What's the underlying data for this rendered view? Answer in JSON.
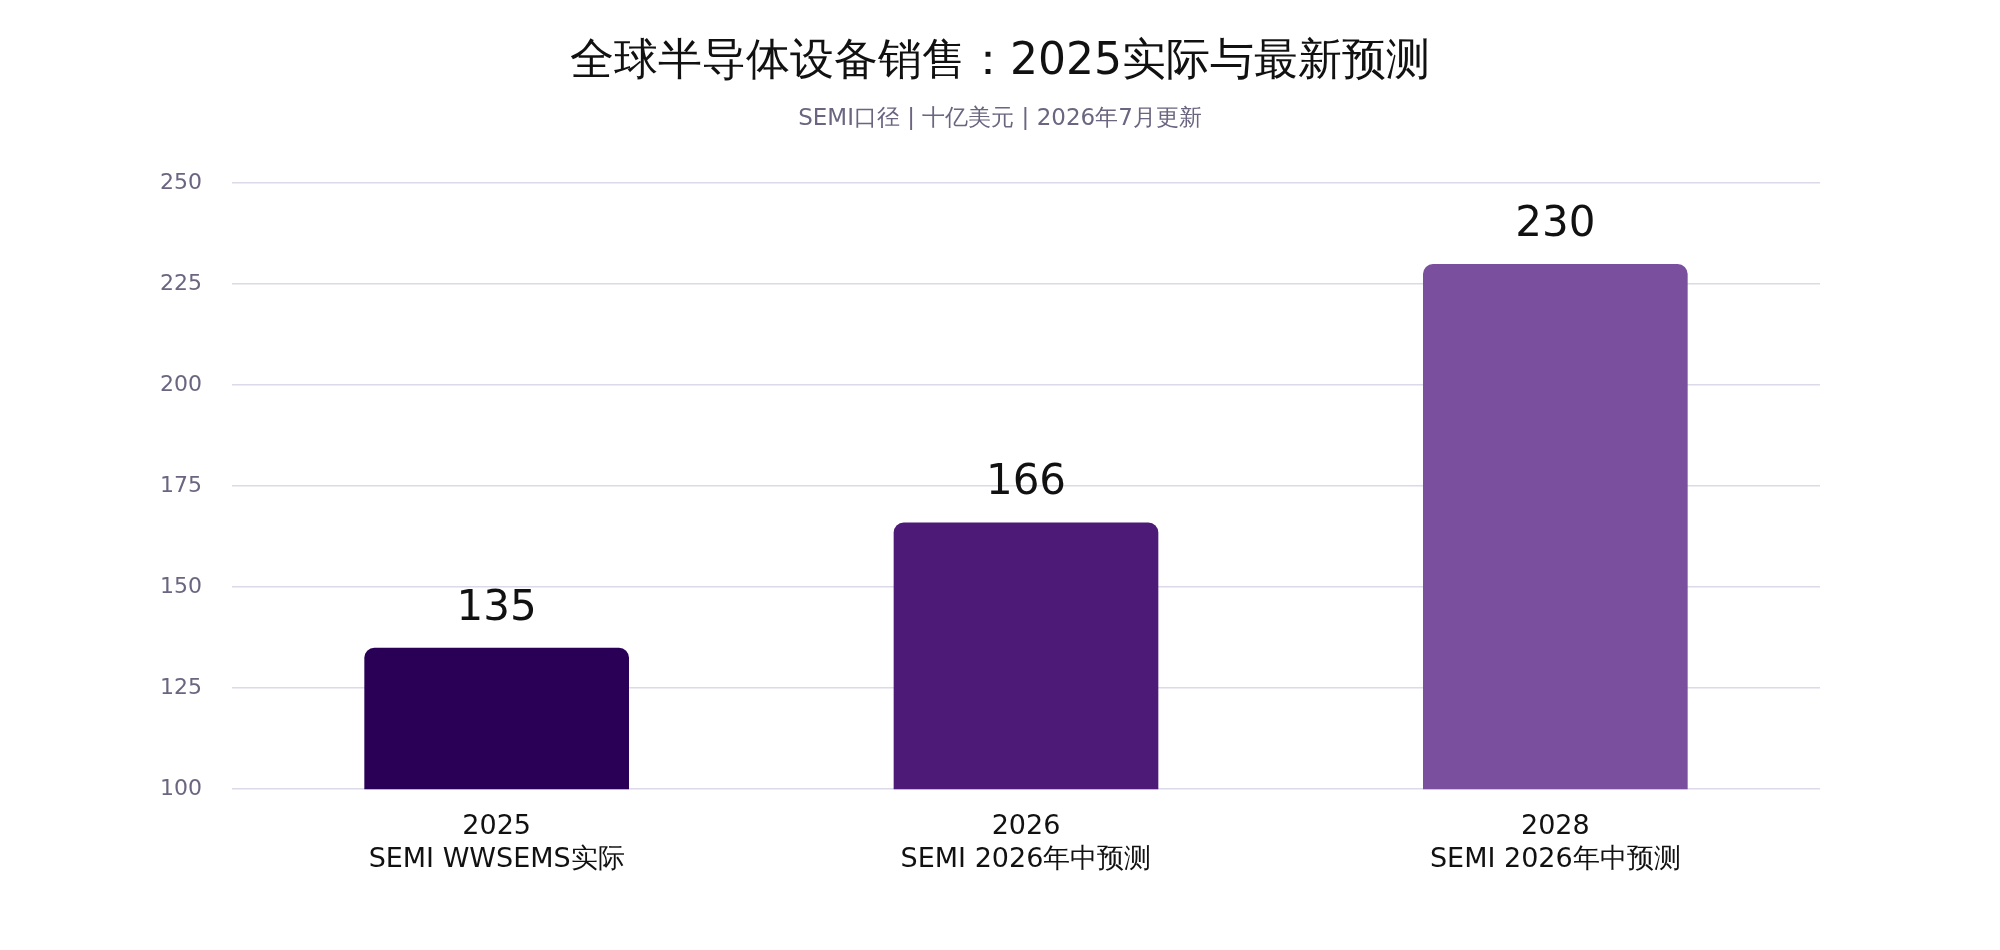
{
  "chart_data": {
    "type": "bar",
    "title": "全球半导体设备销售：2025实际与最新预测",
    "subtitle": "SEMI口径 | 十亿美元 | 2026年7月更新",
    "categories": [
      "2025\nSEMI WWSEMS实际",
      "2026\nSEMI 2026年中预测",
      "2028\nSEMI 2026年中预测"
    ],
    "values": [
      135,
      166,
      230
    ],
    "colors": [
      "#2a0057",
      "#4d1a78",
      "#7a509e"
    ],
    "ylim": [
      100,
      250
    ],
    "yticks": [
      100,
      125,
      150,
      175,
      200,
      225,
      250
    ],
    "grid": "y",
    "data_labels": true,
    "legend": false
  }
}
